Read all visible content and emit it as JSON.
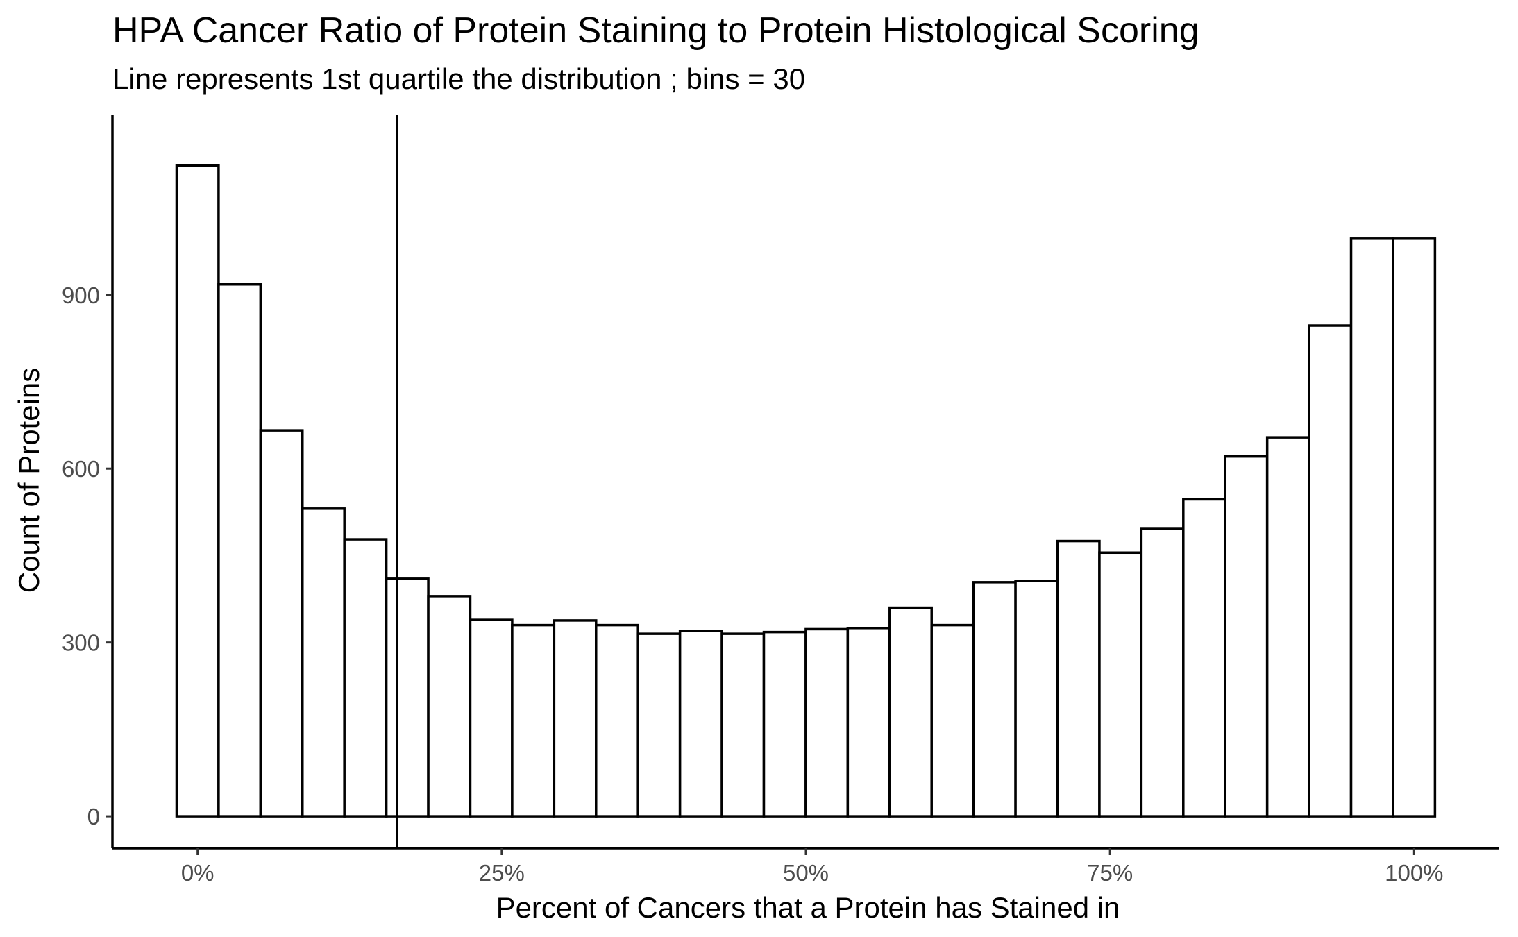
{
  "chart_data": {
    "type": "bar",
    "title": "HPA Cancer Ratio of Protein Staining to Protein Histological Scoring",
    "subtitle": "Line represents 1st quartile the distribution ; bins = 30",
    "xlabel": "Percent of Cancers that a Protein has Stained in",
    "ylabel": "Count of Proteins",
    "bins": 30,
    "bin_width": 0.03448,
    "first_bin_center": 0.0,
    "xlim": [
      -0.07,
      1.07
    ],
    "ylim": [
      -55,
      1210
    ],
    "values": [
      1123,
      918,
      666,
      531,
      478,
      410,
      380,
      339,
      330,
      338,
      330,
      315,
      320,
      315,
      318,
      323,
      325,
      360,
      330,
      404,
      406,
      475,
      455,
      496,
      547,
      621,
      654,
      847,
      997,
      997
    ],
    "quartile_line": 0.1638,
    "x_ticks": [
      {
        "value": 0.0,
        "label": "0%"
      },
      {
        "value": 0.25,
        "label": "25%"
      },
      {
        "value": 0.5,
        "label": "50%"
      },
      {
        "value": 0.75,
        "label": "75%"
      },
      {
        "value": 1.0,
        "label": "100%"
      }
    ],
    "y_ticks": [
      {
        "value": 0,
        "label": "0"
      },
      {
        "value": 300,
        "label": "300"
      },
      {
        "value": 600,
        "label": "600"
      },
      {
        "value": 900,
        "label": "900"
      }
    ],
    "grid": false,
    "legend": "none",
    "bar_fill": "#ffffff",
    "bar_stroke": "#000000"
  }
}
